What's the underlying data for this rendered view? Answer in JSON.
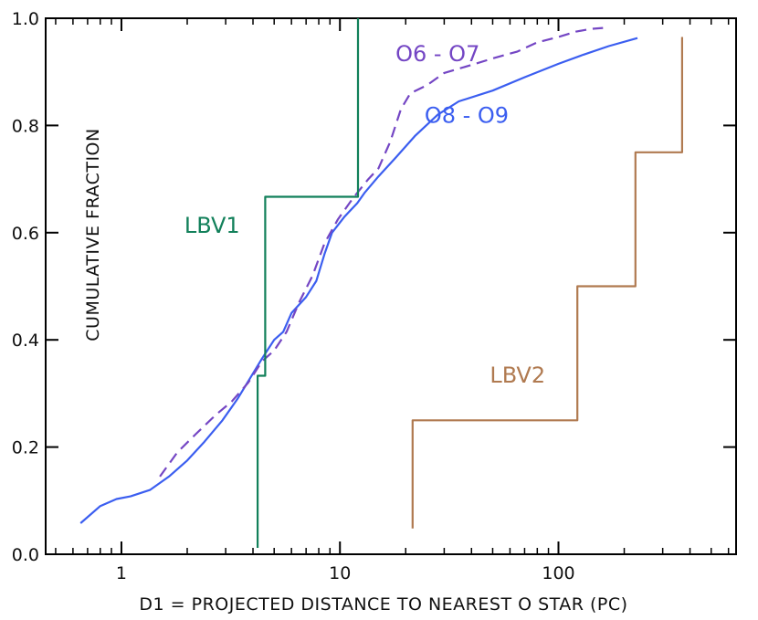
{
  "chart_data": {
    "type": "line",
    "xlabel": "D1 = PROJECTED DISTANCE TO NEAREST O STAR (PC)",
    "ylabel": "CUMULATIVE FRACTION",
    "xscale": "log",
    "xlim": [
      0.45,
      650
    ],
    "ylim": [
      0,
      1.0
    ],
    "grid": false,
    "x_ticks": [
      {
        "value": 1,
        "label": "1"
      },
      {
        "value": 10,
        "label": "10"
      },
      {
        "value": 100,
        "label": "100"
      }
    ],
    "y_ticks": [
      {
        "value": 0.0,
        "label": "0.0"
      },
      {
        "value": 0.2,
        "label": "0.2"
      },
      {
        "value": 0.4,
        "label": "0.4"
      },
      {
        "value": 0.6,
        "label": "0.6"
      },
      {
        "value": 0.8,
        "label": "0.8"
      },
      {
        "value": 1.0,
        "label": "1.0"
      }
    ],
    "series": [
      {
        "name": "O8 - O9",
        "color": "#3b5ef0",
        "style": "solid",
        "label_pos": [
          38,
          0.805
        ],
        "points": [
          [
            0.65,
            0.058
          ],
          [
            0.8,
            0.09
          ],
          [
            0.95,
            0.103
          ],
          [
            1.1,
            0.108
          ],
          [
            1.35,
            0.12
          ],
          [
            1.65,
            0.145
          ],
          [
            2.0,
            0.175
          ],
          [
            2.4,
            0.21
          ],
          [
            2.9,
            0.25
          ],
          [
            3.4,
            0.29
          ],
          [
            3.9,
            0.33
          ],
          [
            4.4,
            0.365
          ],
          [
            5.0,
            0.4
          ],
          [
            5.5,
            0.415
          ],
          [
            6.0,
            0.45
          ],
          [
            7.0,
            0.48
          ],
          [
            7.8,
            0.51
          ],
          [
            8.5,
            0.56
          ],
          [
            9.2,
            0.6
          ],
          [
            10.5,
            0.63
          ],
          [
            12.0,
            0.655
          ],
          [
            13.0,
            0.675
          ],
          [
            15.0,
            0.705
          ],
          [
            18.0,
            0.74
          ],
          [
            22.0,
            0.78
          ],
          [
            28.0,
            0.82
          ],
          [
            35.0,
            0.845
          ],
          [
            50.0,
            0.865
          ],
          [
            70.0,
            0.89
          ],
          [
            100.0,
            0.915
          ],
          [
            130.0,
            0.932
          ],
          [
            170.0,
            0.948
          ],
          [
            230.0,
            0.963
          ]
        ]
      },
      {
        "name": "O6 - O7",
        "color": "#7446c4",
        "style": "dashed",
        "label_pos": [
          28,
          0.92
        ],
        "points": [
          [
            1.5,
            0.145
          ],
          [
            1.8,
            0.19
          ],
          [
            2.2,
            0.225
          ],
          [
            2.7,
            0.26
          ],
          [
            3.2,
            0.285
          ],
          [
            3.8,
            0.32
          ],
          [
            4.4,
            0.36
          ],
          [
            5.0,
            0.38
          ],
          [
            5.7,
            0.415
          ],
          [
            6.5,
            0.47
          ],
          [
            7.5,
            0.52
          ],
          [
            8.5,
            0.58
          ],
          [
            9.8,
            0.625
          ],
          [
            11.5,
            0.665
          ],
          [
            13.5,
            0.7
          ],
          [
            15.0,
            0.72
          ],
          [
            17.0,
            0.77
          ],
          [
            19.0,
            0.83
          ],
          [
            21.0,
            0.86
          ],
          [
            25.0,
            0.875
          ],
          [
            30.0,
            0.898
          ],
          [
            40.0,
            0.913
          ],
          [
            50.0,
            0.925
          ],
          [
            65.0,
            0.938
          ],
          [
            80.0,
            0.955
          ],
          [
            100.0,
            0.965
          ],
          [
            120.0,
            0.975
          ],
          [
            140.0,
            0.98
          ],
          [
            160.0,
            0.982
          ]
        ]
      },
      {
        "name": "LBV1",
        "color": "#12805a",
        "style": "solid",
        "label_pos": [
          2.6,
          0.6
        ],
        "points": [
          [
            4.2,
            0.012
          ],
          [
            4.2,
            0.333
          ],
          [
            4.55,
            0.333
          ],
          [
            4.55,
            0.667
          ],
          [
            12.1,
            0.667
          ],
          [
            12.1,
            1.0
          ]
        ]
      },
      {
        "name": "LBV2",
        "color": "#b07a50",
        "style": "solid",
        "label_pos": [
          65,
          0.32
        ],
        "points": [
          [
            21.5,
            0.048
          ],
          [
            21.5,
            0.25
          ],
          [
            122,
            0.25
          ],
          [
            122,
            0.5
          ],
          [
            225,
            0.5
          ],
          [
            225,
            0.75
          ],
          [
            368,
            0.75
          ],
          [
            368,
            0.965
          ]
        ]
      }
    ]
  }
}
